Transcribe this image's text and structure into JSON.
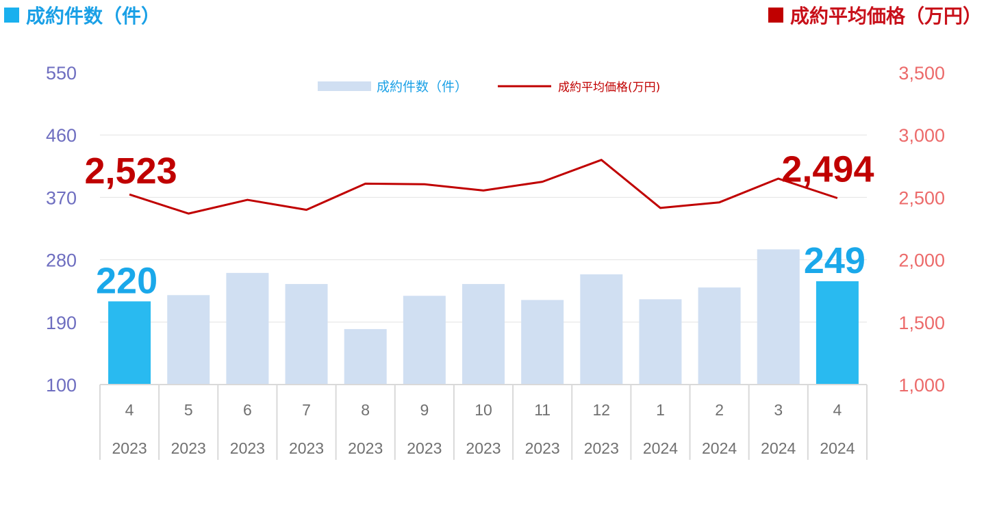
{
  "header": {
    "left_title": "成約件数（件）",
    "right_title": "成約平均価格（万円）",
    "left_color": "#1ab0ee",
    "right_color": "#c00000"
  },
  "chart_data": {
    "type": "bar",
    "title": "",
    "categories": [
      {
        "month": "4",
        "year": "2023"
      },
      {
        "month": "5",
        "year": "2023"
      },
      {
        "month": "6",
        "year": "2023"
      },
      {
        "month": "7",
        "year": "2023"
      },
      {
        "month": "8",
        "year": "2023"
      },
      {
        "month": "9",
        "year": "2023"
      },
      {
        "month": "10",
        "year": "2023"
      },
      {
        "month": "11",
        "year": "2023"
      },
      {
        "month": "12",
        "year": "2023"
      },
      {
        "month": "1",
        "year": "2024"
      },
      {
        "month": "2",
        "year": "2024"
      },
      {
        "month": "3",
        "year": "2024"
      },
      {
        "month": "4",
        "year": "2024"
      }
    ],
    "series": [
      {
        "name": "成約件数（件）",
        "type": "bar",
        "axis": "left",
        "color": "#d0dff2",
        "highlight_color": "#29baf0",
        "highlight_indices": [
          0,
          12
        ],
        "values": [
          220,
          229,
          261,
          245,
          180,
          228,
          245,
          222,
          259,
          223,
          240,
          295,
          249
        ]
      },
      {
        "name": "成約平均価格(万円)",
        "type": "line",
        "axis": "right",
        "color": "#c00000",
        "values": [
          2523,
          2370,
          2480,
          2400,
          2610,
          2605,
          2555,
          2625,
          2800,
          2415,
          2460,
          2650,
          2494
        ]
      }
    ],
    "y_left": {
      "min": 100,
      "max": 550,
      "ticks": [
        "550",
        "460",
        "370",
        "280",
        "190",
        "100"
      ],
      "tick_color": "#6e6ec0"
    },
    "y_right": {
      "min": 1000,
      "max": 3500,
      "ticks": [
        "3,500",
        "3,000",
        "2,500",
        "2,000",
        "1,500",
        "1,000"
      ],
      "tick_color": "#ec6a6a"
    },
    "grid": true,
    "legend_position": "top-center",
    "annotations": [
      {
        "series": 1,
        "index": 0,
        "text": "2,523",
        "color": "#c00000"
      },
      {
        "series": 1,
        "index": 12,
        "text": "2,494",
        "color": "#c00000"
      },
      {
        "series": 0,
        "index": 0,
        "text": "220",
        "color": "#1aa8ea"
      },
      {
        "series": 0,
        "index": 12,
        "text": "249",
        "color": "#1aa8ea"
      }
    ]
  }
}
